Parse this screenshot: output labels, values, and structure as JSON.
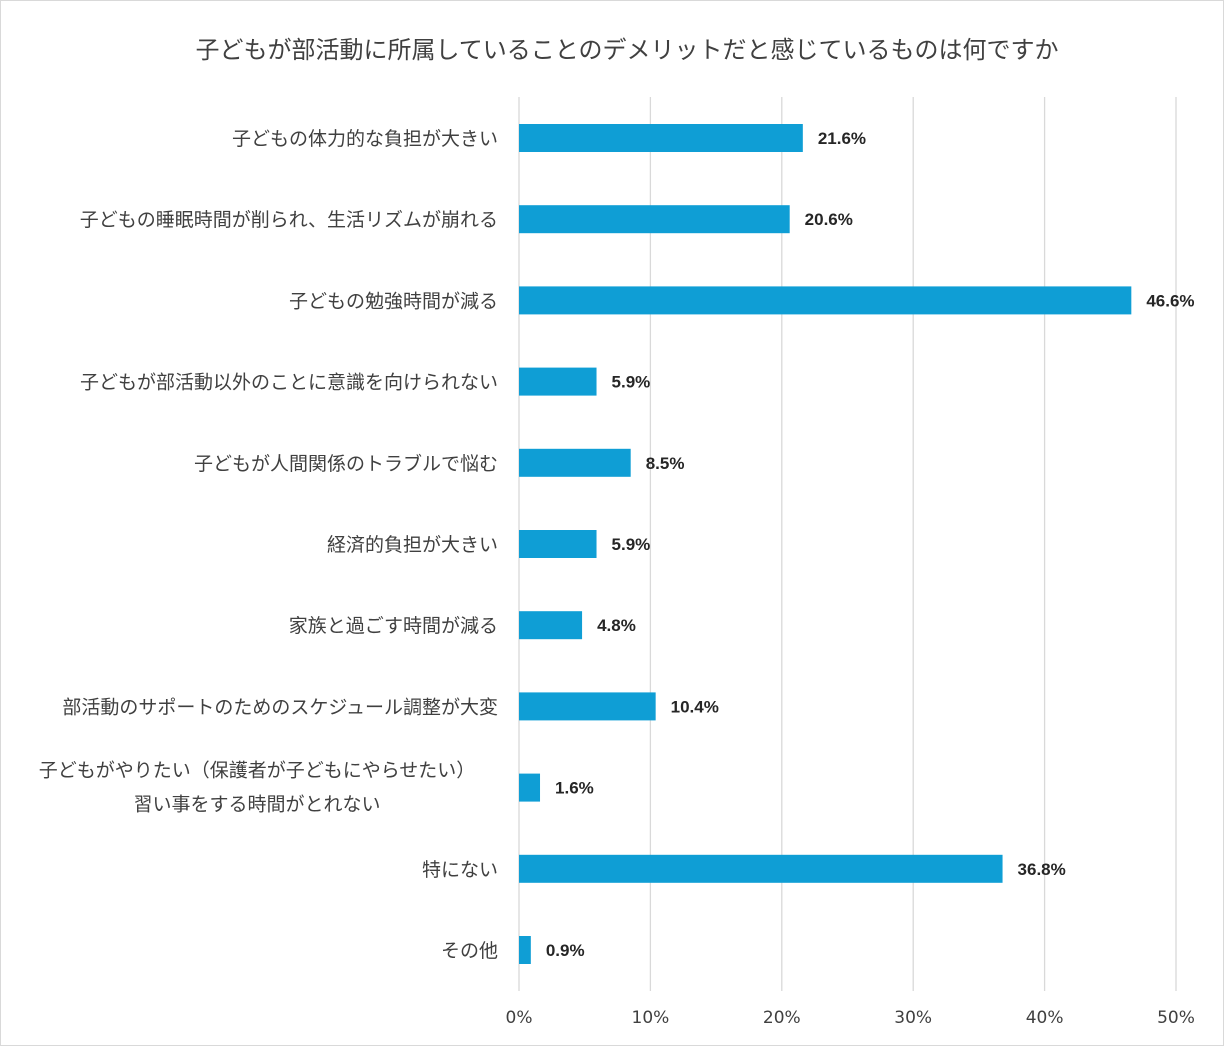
{
  "chart_data": {
    "type": "bar",
    "orientation": "horizontal",
    "title": "子どもが部活動に所属していることのデメリットだと感じているものは何ですか",
    "categories": [
      [
        "子どもの体力的な負担が大きい"
      ],
      [
        "子どもの睡眠時間が削られ、生活リズムが崩れる"
      ],
      [
        "子どもの勉強時間が減る"
      ],
      [
        "子どもが部活動以外のことに意識を向けられない"
      ],
      [
        "子どもが人間関係のトラブルで悩む"
      ],
      [
        "経済的負担が大きい"
      ],
      [
        "家族と過ごす時間が減る"
      ],
      [
        "部活動のサポートのためのスケジュール調整が大変"
      ],
      [
        "子どもがやりたい（保護者が子どもにやらせたい）",
        "習い事をする時間がとれない"
      ],
      [
        "特にない"
      ],
      [
        "その他"
      ]
    ],
    "values": [
      21.6,
      20.6,
      46.6,
      5.9,
      8.5,
      5.9,
      4.8,
      10.4,
      1.6,
      36.8,
      0.9
    ],
    "data_labels": [
      "21.6%",
      "20.6%",
      "46.6%",
      "5.9%",
      "8.5%",
      "5.9%",
      "4.8%",
      "10.4%",
      "1.6%",
      "36.8%",
      "0.9%"
    ],
    "xlim": [
      0,
      50
    ],
    "x_ticks": [
      0,
      10,
      20,
      30,
      40,
      50
    ],
    "x_tick_labels": [
      "0%",
      "10%",
      "20%",
      "30%",
      "40%",
      "50%"
    ],
    "grid": "vertical",
    "legend": "none",
    "bar_color": "#0f9ed5"
  }
}
